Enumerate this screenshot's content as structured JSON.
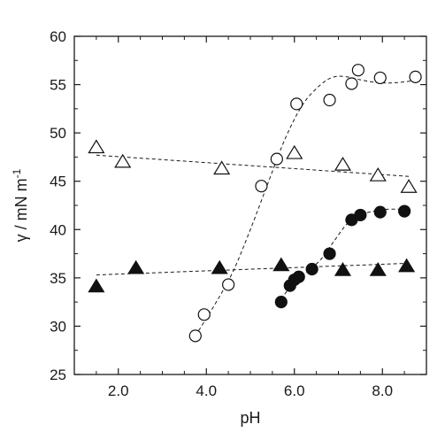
{
  "chart_data": {
    "type": "scatter",
    "title": "",
    "xlabel": "pH",
    "ylabel": "γ / mN m-1",
    "ylabel_parts": {
      "main": "γ / mN m",
      "sup": "-1"
    },
    "xlim": [
      1.0,
      9.0
    ],
    "ylim": [
      25,
      60
    ],
    "xticks": [
      2.0,
      4.0,
      6.0,
      8.0
    ],
    "xtick_labels": [
      "2.0",
      "4.0",
      "6.0",
      "8.0"
    ],
    "yticks": [
      25,
      30,
      35,
      40,
      45,
      50,
      55,
      60
    ],
    "ytick_labels": [
      "25",
      "30",
      "35",
      "40",
      "45",
      "50",
      "55",
      "60"
    ],
    "grid": false,
    "legend": "none",
    "series": [
      {
        "marker": "circle-open",
        "x": [
          3.75,
          3.95,
          4.5,
          5.25,
          5.6,
          6.05,
          6.8,
          7.3,
          7.45,
          7.95,
          8.75
        ],
        "y": [
          29.0,
          31.2,
          34.3,
          44.5,
          47.3,
          53.0,
          53.4,
          55.1,
          56.5,
          55.7,
          55.8
        ],
        "fit": {
          "x": [
            3.75,
            4.2,
            4.6,
            5.0,
            5.4,
            5.8,
            6.2,
            6.6,
            6.9,
            7.2,
            7.5,
            7.9,
            8.3,
            8.7
          ],
          "y": [
            29.0,
            32.3,
            35.6,
            40.0,
            44.8,
            49.5,
            53.0,
            55.0,
            55.8,
            55.8,
            55.5,
            55.2,
            55.2,
            55.4
          ]
        }
      },
      {
        "marker": "circle-filled",
        "x": [
          5.7,
          5.9,
          6.0,
          6.1,
          6.4,
          6.8,
          7.3,
          7.5,
          7.95,
          8.5
        ],
        "y": [
          32.5,
          34.2,
          34.8,
          35.1,
          35.9,
          37.5,
          41.0,
          41.5,
          41.8,
          41.9
        ],
        "fit": {
          "x": [
            5.7,
            6.0,
            6.3,
            6.6,
            6.9,
            7.2,
            7.5,
            7.8,
            8.1,
            8.5
          ],
          "y": [
            32.8,
            34.6,
            35.7,
            36.9,
            38.8,
            40.6,
            41.5,
            41.9,
            42.1,
            42.1
          ]
        }
      },
      {
        "marker": "triangle-open",
        "x": [
          1.5,
          2.1,
          4.35,
          6.0,
          7.1,
          7.9,
          8.6
        ],
        "y": [
          48.5,
          47.0,
          46.3,
          47.9,
          46.7,
          45.6,
          44.4
        ],
        "fit": {
          "x": [
            1.5,
            8.6
          ],
          "y": [
            47.7,
            45.5
          ]
        }
      },
      {
        "marker": "triangle-filled",
        "x": [
          1.5,
          2.4,
          4.3,
          5.7,
          7.1,
          7.9,
          8.55
        ],
        "y": [
          34.1,
          36.0,
          36.0,
          36.3,
          35.8,
          35.8,
          36.2
        ],
        "fit": {
          "x": [
            1.5,
            8.55
          ],
          "y": [
            35.3,
            36.5
          ]
        }
      }
    ]
  }
}
